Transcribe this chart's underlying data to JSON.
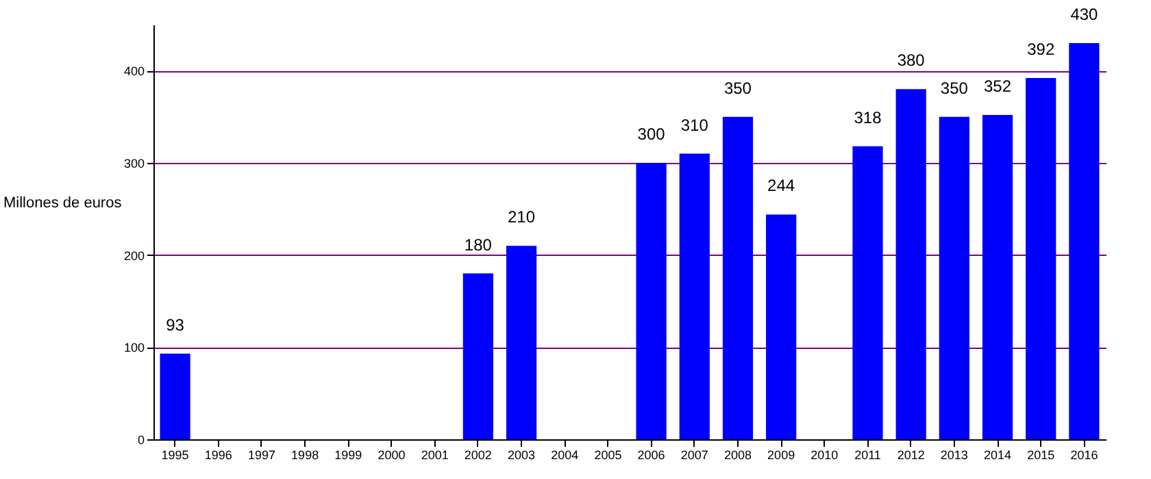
{
  "chart_data": {
    "type": "bar",
    "ylabel": "Millones de euros",
    "categories": [
      "1995",
      "1996",
      "1997",
      "1998",
      "1999",
      "2000",
      "2001",
      "2002",
      "2003",
      "2004",
      "2005",
      "2006",
      "2007",
      "2008",
      "2009",
      "2010",
      "2011",
      "2012",
      "2013",
      "2014",
      "2015",
      "2016"
    ],
    "values": [
      93,
      null,
      null,
      null,
      null,
      null,
      null,
      180,
      210,
      null,
      null,
      300,
      310,
      350,
      244,
      null,
      318,
      380,
      350,
      352,
      392,
      430
    ],
    "color": "#0000ff",
    "ylim": [
      0,
      450
    ],
    "yticks": [
      0,
      100,
      200,
      300,
      400
    ],
    "grid": "y",
    "data_labels": true
  }
}
